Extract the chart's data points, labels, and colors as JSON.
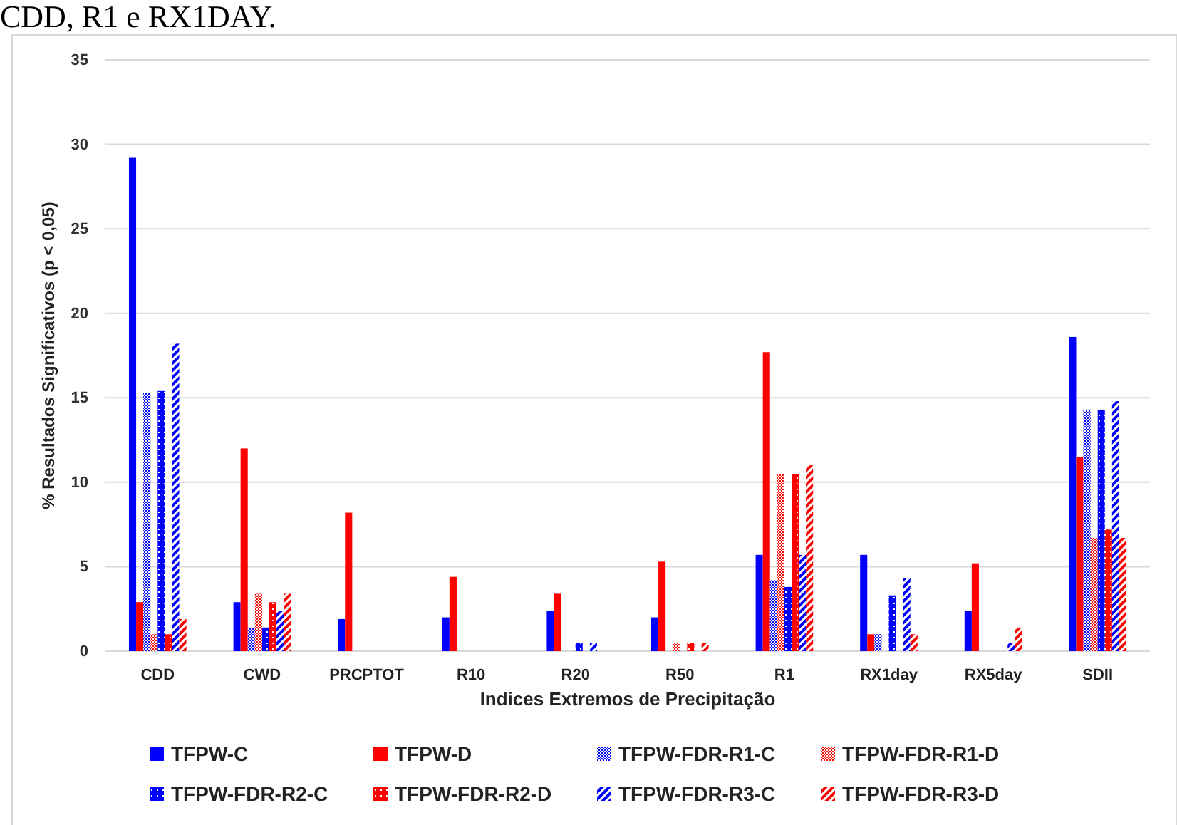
{
  "chart_data": {
    "type": "bar",
    "annotations": [
      "CDD, R1 e RX1DAY."
    ],
    "xlabel": "Indices Extremos de Precipitação",
    "ylabel": "% Resultados Significativos (p < 0,05)",
    "categories": [
      "CDD",
      "CWD",
      "PRCPTOT",
      "R10",
      "R20",
      "R50",
      "R1",
      "RX1day",
      "RX5day",
      "SDII"
    ],
    "series": [
      {
        "name": "TFPW-C",
        "color": "#0000ff",
        "values": [
          29.2,
          2.9,
          1.9,
          2.0,
          2.4,
          2.0,
          5.7,
          5.7,
          2.4,
          18.6
        ]
      },
      {
        "name": "TFPW-D",
        "color": "#ff0000",
        "values": [
          2.9,
          12.0,
          8.2,
          4.4,
          3.4,
          5.3,
          17.7,
          1.0,
          5.2,
          11.5
        ]
      },
      {
        "name": "TFPW-FDR-R1-C",
        "color": "#0000ff",
        "values": [
          15.3,
          1.4,
          0,
          0,
          0,
          0,
          4.2,
          1.0,
          0,
          14.3
        ]
      },
      {
        "name": "TFPW-FDR-R1-D",
        "color": "#ff0000",
        "values": [
          1.0,
          3.4,
          0,
          0,
          0,
          0.5,
          10.5,
          0,
          0,
          6.7
        ]
      },
      {
        "name": "TFPW-FDR-R2-C",
        "color": "#0000ff",
        "values": [
          15.4,
          1.4,
          0,
          0,
          0.5,
          0,
          3.8,
          3.3,
          0,
          14.3
        ]
      },
      {
        "name": "TFPW-FDR-R2-D",
        "color": "#ff0000",
        "values": [
          1.0,
          2.9,
          0,
          0,
          0,
          0.5,
          10.5,
          0,
          0,
          7.2
        ]
      },
      {
        "name": "TFPW-FDR-R3-C",
        "color": "#0000ff",
        "values": [
          18.2,
          2.4,
          0,
          0,
          0.5,
          0,
          5.7,
          4.3,
          0.5,
          14.8
        ]
      },
      {
        "name": "TFPW-FDR-R3-D",
        "color": "#ff0000",
        "values": [
          1.9,
          3.4,
          0,
          0,
          0,
          0.5,
          11.0,
          1.0,
          1.4,
          6.7
        ]
      }
    ],
    "ylim": [
      0,
      35
    ],
    "yticks": [
      0,
      5,
      10,
      15,
      20,
      25,
      30,
      35
    ],
    "grid": "y",
    "legend": "bottom"
  }
}
